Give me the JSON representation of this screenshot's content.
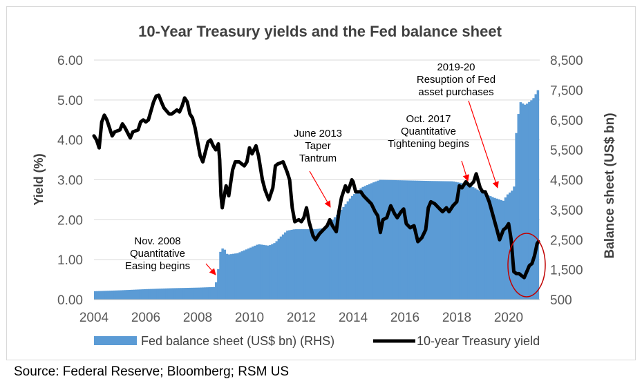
{
  "chart_data": {
    "type": "bar+line",
    "title": "10-Year Treasury yields and the Fed balance sheet",
    "y_left_label": "Yield (%)",
    "y_right_label": "Balance sheet (US$ bn)",
    "y_left_ticks": [
      "0.00",
      "1.00",
      "2.00",
      "3.00",
      "4.00",
      "5.00",
      "6.00"
    ],
    "y_right_ticks": [
      "500",
      "1,500",
      "2,500",
      "3,500",
      "4,500",
      "5,500",
      "6,500",
      "7,500",
      "8,500"
    ],
    "x_ticks": [
      "2004",
      "2006",
      "2008",
      "2010",
      "2012",
      "2014",
      "2016",
      "2018",
      "2020"
    ],
    "ylim_left": [
      0,
      6
    ],
    "ylim_right": [
      500,
      8500
    ],
    "xlim": [
      2004,
      2021.2
    ],
    "series": [
      {
        "name": "Fed balance sheet (US$ bn) (RHS)",
        "kind": "bar",
        "axis": "right",
        "color": "#5b9bd5",
        "points": [
          [
            2004.0,
            780
          ],
          [
            2005.0,
            810
          ],
          [
            2006.0,
            850
          ],
          [
            2007.0,
            880
          ],
          [
            2008.0,
            900
          ],
          [
            2008.6,
            920
          ],
          [
            2008.72,
            1200
          ],
          [
            2008.8,
            2050
          ],
          [
            2008.95,
            2250
          ],
          [
            2009.1,
            2000
          ],
          [
            2009.5,
            2050
          ],
          [
            2009.9,
            2200
          ],
          [
            2010.3,
            2350
          ],
          [
            2010.7,
            2300
          ],
          [
            2010.95,
            2400
          ],
          [
            2011.1,
            2550
          ],
          [
            2011.4,
            2800
          ],
          [
            2011.7,
            2850
          ],
          [
            2012.5,
            2850
          ],
          [
            2012.9,
            2900
          ],
          [
            2013.1,
            3100
          ],
          [
            2013.5,
            3500
          ],
          [
            2013.9,
            3950
          ],
          [
            2014.3,
            4250
          ],
          [
            2014.7,
            4400
          ],
          [
            2015.0,
            4500
          ],
          [
            2016.0,
            4480
          ],
          [
            2017.0,
            4460
          ],
          [
            2017.8,
            4450
          ],
          [
            2018.2,
            4380
          ],
          [
            2018.6,
            4250
          ],
          [
            2019.0,
            4050
          ],
          [
            2019.4,
            3900
          ],
          [
            2019.75,
            3800
          ],
          [
            2019.9,
            4000
          ],
          [
            2020.1,
            4150
          ],
          [
            2020.18,
            4300
          ],
          [
            2020.22,
            5800
          ],
          [
            2020.3,
            6500
          ],
          [
            2020.4,
            7100
          ],
          [
            2020.6,
            7000
          ],
          [
            2020.9,
            7200
          ],
          [
            2021.15,
            7600
          ]
        ]
      },
      {
        "name": "10-year Treasury yield",
        "kind": "line",
        "axis": "left",
        "color": "#000000",
        "points": [
          [
            2004.0,
            4.1
          ],
          [
            2004.1,
            4.0
          ],
          [
            2004.2,
            3.8
          ],
          [
            2004.3,
            4.45
          ],
          [
            2004.4,
            4.62
          ],
          [
            2004.5,
            4.5
          ],
          [
            2004.7,
            4.1
          ],
          [
            2004.8,
            4.2
          ],
          [
            2005.0,
            4.25
          ],
          [
            2005.1,
            4.4
          ],
          [
            2005.2,
            4.3
          ],
          [
            2005.4,
            4.05
          ],
          [
            2005.5,
            4.2
          ],
          [
            2005.7,
            4.25
          ],
          [
            2005.8,
            4.45
          ],
          [
            2005.9,
            4.5
          ],
          [
            2006.0,
            4.45
          ],
          [
            2006.1,
            4.5
          ],
          [
            2006.3,
            4.95
          ],
          [
            2006.4,
            5.1
          ],
          [
            2006.5,
            5.12
          ],
          [
            2006.6,
            4.95
          ],
          [
            2006.7,
            4.8
          ],
          [
            2006.9,
            4.65
          ],
          [
            2007.0,
            4.65
          ],
          [
            2007.2,
            4.75
          ],
          [
            2007.3,
            4.7
          ],
          [
            2007.4,
            4.85
          ],
          [
            2007.5,
            5.05
          ],
          [
            2007.6,
            4.95
          ],
          [
            2007.7,
            4.65
          ],
          [
            2007.8,
            4.55
          ],
          [
            2007.9,
            4.3
          ],
          [
            2008.0,
            3.95
          ],
          [
            2008.1,
            3.6
          ],
          [
            2008.2,
            3.45
          ],
          [
            2008.3,
            3.7
          ],
          [
            2008.4,
            3.95
          ],
          [
            2008.5,
            4.0
          ],
          [
            2008.6,
            3.85
          ],
          [
            2008.7,
            3.75
          ],
          [
            2008.8,
            3.9
          ],
          [
            2008.85,
            3.5
          ],
          [
            2008.9,
            2.6
          ],
          [
            2008.95,
            2.3
          ],
          [
            2009.0,
            2.5
          ],
          [
            2009.1,
            2.85
          ],
          [
            2009.2,
            2.6
          ],
          [
            2009.35,
            3.25
          ],
          [
            2009.45,
            3.45
          ],
          [
            2009.6,
            3.45
          ],
          [
            2009.8,
            3.35
          ],
          [
            2009.9,
            3.45
          ],
          [
            2010.0,
            3.8
          ],
          [
            2010.1,
            3.65
          ],
          [
            2010.25,
            3.85
          ],
          [
            2010.35,
            3.6
          ],
          [
            2010.5,
            3.0
          ],
          [
            2010.6,
            2.75
          ],
          [
            2010.75,
            2.5
          ],
          [
            2010.9,
            2.8
          ],
          [
            2011.0,
            3.35
          ],
          [
            2011.1,
            3.4
          ],
          [
            2011.3,
            3.45
          ],
          [
            2011.45,
            3.2
          ],
          [
            2011.55,
            3.0
          ],
          [
            2011.65,
            2.3
          ],
          [
            2011.75,
            1.95
          ],
          [
            2011.9,
            2.0
          ],
          [
            2012.0,
            1.95
          ],
          [
            2012.1,
            2.05
          ],
          [
            2012.2,
            2.3
          ],
          [
            2012.3,
            1.95
          ],
          [
            2012.45,
            1.6
          ],
          [
            2012.55,
            1.5
          ],
          [
            2012.7,
            1.65
          ],
          [
            2012.85,
            1.75
          ],
          [
            2013.0,
            1.85
          ],
          [
            2013.1,
            2.0
          ],
          [
            2013.2,
            1.85
          ],
          [
            2013.35,
            1.7
          ],
          [
            2013.45,
            2.2
          ],
          [
            2013.55,
            2.55
          ],
          [
            2013.7,
            2.85
          ],
          [
            2013.8,
            2.7
          ],
          [
            2013.95,
            3.0
          ],
          [
            2014.0,
            2.95
          ],
          [
            2014.1,
            2.7
          ],
          [
            2014.3,
            2.7
          ],
          [
            2014.4,
            2.6
          ],
          [
            2014.55,
            2.5
          ],
          [
            2014.7,
            2.4
          ],
          [
            2014.85,
            2.2
          ],
          [
            2014.95,
            2.1
          ],
          [
            2015.05,
            1.68
          ],
          [
            2015.15,
            2.0
          ],
          [
            2015.3,
            2.05
          ],
          [
            2015.45,
            2.35
          ],
          [
            2015.6,
            2.15
          ],
          [
            2015.7,
            2.05
          ],
          [
            2015.85,
            2.2
          ],
          [
            2015.95,
            2.27
          ],
          [
            2016.05,
            1.9
          ],
          [
            2016.2,
            1.8
          ],
          [
            2016.35,
            1.85
          ],
          [
            2016.5,
            1.45
          ],
          [
            2016.65,
            1.55
          ],
          [
            2016.8,
            1.75
          ],
          [
            2016.9,
            2.3
          ],
          [
            2017.0,
            2.45
          ],
          [
            2017.15,
            2.4
          ],
          [
            2017.3,
            2.3
          ],
          [
            2017.45,
            2.2
          ],
          [
            2017.6,
            2.3
          ],
          [
            2017.7,
            2.2
          ],
          [
            2017.85,
            2.35
          ],
          [
            2018.0,
            2.45
          ],
          [
            2018.1,
            2.85
          ],
          [
            2018.2,
            2.8
          ],
          [
            2018.35,
            2.95
          ],
          [
            2018.5,
            2.85
          ],
          [
            2018.65,
            2.95
          ],
          [
            2018.75,
            3.15
          ],
          [
            2018.9,
            2.8
          ],
          [
            2019.0,
            2.7
          ],
          [
            2019.1,
            2.7
          ],
          [
            2019.25,
            2.45
          ],
          [
            2019.4,
            2.1
          ],
          [
            2019.55,
            1.75
          ],
          [
            2019.65,
            1.5
          ],
          [
            2019.8,
            1.75
          ],
          [
            2019.9,
            1.8
          ],
          [
            2020.0,
            1.9
          ],
          [
            2020.1,
            1.5
          ],
          [
            2020.2,
            0.7
          ],
          [
            2020.3,
            0.65
          ],
          [
            2020.4,
            0.65
          ],
          [
            2020.5,
            0.6
          ],
          [
            2020.6,
            0.55
          ],
          [
            2020.7,
            0.7
          ],
          [
            2020.8,
            0.85
          ],
          [
            2020.9,
            0.9
          ],
          [
            2021.0,
            1.1
          ],
          [
            2021.1,
            1.4
          ],
          [
            2021.15,
            1.45
          ]
        ]
      }
    ],
    "annotations": [
      {
        "text": [
          "Nov. 2008",
          "Quantitative",
          "Easing begins"
        ],
        "target": [
          2008.6,
          0.6
        ]
      },
      {
        "text": [
          "June 2013",
          "Taper",
          "Tantrum"
        ],
        "target": [
          2013.1,
          2.3
        ]
      },
      {
        "text": [
          "Oct. 2017",
          "Quantitative",
          "Tightening begins"
        ],
        "target": [
          2018.05,
          3.0
        ]
      },
      {
        "text": [
          "2019-20",
          "Resuption of Fed",
          "asset purchases"
        ],
        "target": [
          2019.7,
          2.75
        ]
      }
    ],
    "highlight_ellipse": {
      "shape": "circle",
      "color": "#c00000"
    },
    "legend": {
      "position": "bottom"
    }
  },
  "source_text": "Source: Federal Reserve; Bloomberg; RSM US"
}
